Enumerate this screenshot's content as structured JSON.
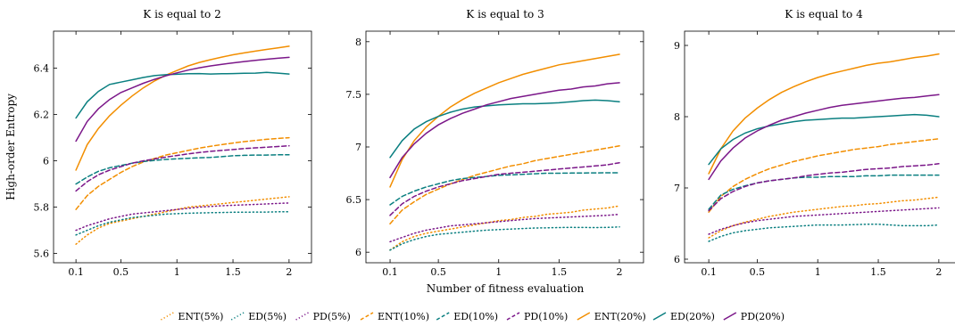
{
  "chart_data": {
    "type": "line",
    "xlabel": "Number of fitness evaluation",
    "ylabel": "High-order Entropy",
    "legend": {
      "placement": "bottom",
      "entries": [
        "ENT(5%)",
        "ED(5%)",
        "PD(5%)",
        "ENT(10%)",
        "ED(10%)",
        "PD(10%)",
        "ENT(20%)",
        "ED(20%)",
        "PD(20%)"
      ]
    },
    "styles": {
      "ENT": "#f28e00",
      "ED": "#0a7f80",
      "PD": "#7b1789",
      "5%": "dotted",
      "10%": "dashed",
      "20%": "solid"
    },
    "x": [
      0.1,
      0.2,
      0.3,
      0.4,
      0.5,
      0.6,
      0.7,
      0.8,
      0.9,
      1.0,
      1.1,
      1.2,
      1.3,
      1.4,
      1.5,
      1.6,
      1.7,
      1.8,
      1.9,
      2.0
    ],
    "panels": [
      {
        "title": "K is equal to 2",
        "xlim": [
          -0.1,
          2.2
        ],
        "ylim": [
          5.56,
          6.56
        ],
        "xticks": [
          0.1,
          0.5,
          1,
          1.5,
          2
        ],
        "xtick_labels": [
          "0.1",
          "0.5",
          "1",
          "1.5",
          "2"
        ],
        "yticks": [
          5.6,
          5.8,
          6.0,
          6.2,
          6.4
        ],
        "ytick_labels": [
          "5.6",
          "5.8",
          "6",
          "6.2",
          "6.4"
        ],
        "series": [
          {
            "name": "ENT(5%)",
            "values": [
              5.64,
              5.68,
              5.71,
              5.73,
              5.74,
              5.75,
              5.76,
              5.77,
              5.78,
              5.79,
              5.8,
              5.805,
              5.81,
              5.815,
              5.82,
              5.825,
              5.83,
              5.835,
              5.84,
              5.845
            ]
          },
          {
            "name": "ED(5%)",
            "values": [
              5.68,
              5.7,
              5.72,
              5.735,
              5.745,
              5.755,
              5.76,
              5.765,
              5.77,
              5.772,
              5.774,
              5.775,
              5.776,
              5.777,
              5.778,
              5.778,
              5.779,
              5.779,
              5.78,
              5.78
            ]
          },
          {
            "name": "PD(5%)",
            "values": [
              5.7,
              5.72,
              5.735,
              5.75,
              5.76,
              5.77,
              5.775,
              5.78,
              5.785,
              5.79,
              5.795,
              5.8,
              5.803,
              5.806,
              5.808,
              5.81,
              5.812,
              5.814,
              5.816,
              5.818
            ]
          },
          {
            "name": "ENT(10%)",
            "values": [
              5.79,
              5.85,
              5.89,
              5.92,
              5.95,
              5.975,
              5.995,
              6.01,
              6.025,
              6.035,
              6.045,
              6.055,
              6.063,
              6.07,
              6.077,
              6.083,
              6.088,
              6.093,
              6.097,
              6.1
            ]
          },
          {
            "name": "ED(10%)",
            "values": [
              5.9,
              5.93,
              5.955,
              5.97,
              5.98,
              5.99,
              5.997,
              6.002,
              6.006,
              6.009,
              6.011,
              6.013,
              6.015,
              6.018,
              6.022,
              6.024,
              6.025,
              6.025,
              6.026,
              6.026
            ]
          },
          {
            "name": "PD(10%)",
            "values": [
              5.87,
              5.91,
              5.94,
              5.96,
              5.975,
              5.99,
              6.0,
              6.008,
              6.016,
              6.023,
              6.03,
              6.036,
              6.041,
              6.045,
              6.049,
              6.053,
              6.056,
              6.059,
              6.062,
              6.065
            ]
          },
          {
            "name": "ENT(20%)",
            "values": [
              5.96,
              6.07,
              6.14,
              6.195,
              6.24,
              6.28,
              6.315,
              6.345,
              6.37,
              6.39,
              6.41,
              6.425,
              6.437,
              6.448,
              6.458,
              6.466,
              6.474,
              6.481,
              6.488,
              6.495
            ]
          },
          {
            "name": "ED(20%)",
            "values": [
              6.185,
              6.255,
              6.3,
              6.33,
              6.34,
              6.35,
              6.36,
              6.368,
              6.372,
              6.374,
              6.376,
              6.377,
              6.375,
              6.376,
              6.377,
              6.378,
              6.379,
              6.382,
              6.379,
              6.375
            ]
          },
          {
            "name": "PD(20%)",
            "values": [
              6.085,
              6.17,
              6.225,
              6.265,
              6.295,
              6.315,
              6.335,
              6.352,
              6.367,
              6.38,
              6.392,
              6.402,
              6.41,
              6.417,
              6.423,
              6.429,
              6.434,
              6.439,
              6.443,
              6.447
            ]
          }
        ]
      },
      {
        "title": "K is equal to 3",
        "xlim": [
          -0.1,
          2.2
        ],
        "ylim": [
          5.9,
          8.1
        ],
        "xticks": [
          0.1,
          0.5,
          1,
          1.5,
          2
        ],
        "xtick_labels": [
          "0.1",
          "0.5",
          "1",
          "1.5",
          "2"
        ],
        "yticks": [
          6.0,
          6.5,
          7.0,
          7.5,
          8.0
        ],
        "ytick_labels": [
          "6",
          "6.5",
          "7",
          "7.5",
          "8"
        ],
        "series": [
          {
            "name": "ENT(5%)",
            "values": [
              6.02,
              6.1,
              6.15,
              6.18,
              6.2,
              6.22,
              6.24,
              6.26,
              6.28,
              6.3,
              6.31,
              6.33,
              6.34,
              6.36,
              6.37,
              6.38,
              6.4,
              6.41,
              6.42,
              6.44
            ]
          },
          {
            "name": "ED(5%)",
            "values": [
              6.02,
              6.08,
              6.12,
              6.15,
              6.17,
              6.18,
              6.19,
              6.2,
              6.21,
              6.215,
              6.22,
              6.225,
              6.23,
              6.232,
              6.234,
              6.236,
              6.235,
              6.234,
              6.236,
              6.24
            ]
          },
          {
            "name": "PD(5%)",
            "values": [
              6.1,
              6.14,
              6.18,
              6.21,
              6.23,
              6.25,
              6.26,
              6.27,
              6.28,
              6.29,
              6.3,
              6.31,
              6.32,
              6.325,
              6.33,
              6.335,
              6.34,
              6.345,
              6.35,
              6.36
            ]
          },
          {
            "name": "ENT(10%)",
            "values": [
              6.27,
              6.4,
              6.48,
              6.55,
              6.6,
              6.65,
              6.69,
              6.73,
              6.76,
              6.79,
              6.82,
              6.84,
              6.87,
              6.89,
              6.91,
              6.93,
              6.95,
              6.97,
              6.99,
              7.01
            ]
          },
          {
            "name": "ED(10%)",
            "values": [
              6.45,
              6.53,
              6.58,
              6.62,
              6.65,
              6.68,
              6.7,
              6.71,
              6.72,
              6.73,
              6.735,
              6.74,
              6.745,
              6.75,
              6.75,
              6.752,
              6.753,
              6.754,
              6.755,
              6.755
            ]
          },
          {
            "name": "PD(10%)",
            "values": [
              6.35,
              6.46,
              6.53,
              6.58,
              6.62,
              6.65,
              6.68,
              6.7,
              6.72,
              6.74,
              6.75,
              6.76,
              6.77,
              6.78,
              6.79,
              6.8,
              6.81,
              6.82,
              6.83,
              6.85
            ]
          },
          {
            "name": "ENT(20%)",
            "values": [
              6.62,
              6.88,
              7.06,
              7.19,
              7.29,
              7.38,
              7.45,
              7.51,
              7.56,
              7.61,
              7.65,
              7.69,
              7.72,
              7.75,
              7.78,
              7.8,
              7.82,
              7.84,
              7.86,
              7.88
            ]
          },
          {
            "name": "ED(20%)",
            "values": [
              6.9,
              7.06,
              7.17,
              7.24,
              7.29,
              7.33,
              7.36,
              7.38,
              7.39,
              7.4,
              7.405,
              7.41,
              7.41,
              7.415,
              7.42,
              7.43,
              7.44,
              7.445,
              7.44,
              7.43
            ]
          },
          {
            "name": "PD(20%)",
            "values": [
              6.71,
              6.9,
              7.03,
              7.13,
              7.21,
              7.27,
              7.32,
              7.36,
              7.4,
              7.43,
              7.46,
              7.48,
              7.5,
              7.52,
              7.54,
              7.55,
              7.57,
              7.58,
              7.6,
              7.61
            ]
          }
        ]
      },
      {
        "title": "K is equal to 4",
        "xlim": [
          -0.1,
          2.2
        ],
        "ylim": [
          5.95,
          9.2
        ],
        "xticks": [
          0.1,
          0.5,
          1,
          1.5,
          2
        ],
        "xtick_labels": [
          "0.1",
          "0.5",
          "1",
          "1.5",
          "2"
        ],
        "yticks": [
          6,
          7,
          8,
          9
        ],
        "ytick_labels": [
          "6",
          "7",
          "8",
          "9"
        ],
        "series": [
          {
            "name": "ENT(5%)",
            "values": [
              6.3,
              6.4,
              6.47,
              6.52,
              6.56,
              6.6,
              6.63,
              6.66,
              6.68,
              6.7,
              6.72,
              6.74,
              6.75,
              6.77,
              6.78,
              6.8,
              6.82,
              6.83,
              6.85,
              6.87
            ]
          },
          {
            "name": "ED(5%)",
            "values": [
              6.25,
              6.32,
              6.37,
              6.4,
              6.42,
              6.44,
              6.45,
              6.46,
              6.47,
              6.48,
              6.48,
              6.48,
              6.485,
              6.49,
              6.49,
              6.48,
              6.47,
              6.47,
              6.47,
              6.48
            ]
          },
          {
            "name": "PD(5%)",
            "values": [
              6.35,
              6.42,
              6.47,
              6.51,
              6.54,
              6.56,
              6.58,
              6.6,
              6.61,
              6.62,
              6.63,
              6.64,
              6.65,
              6.66,
              6.67,
              6.68,
              6.69,
              6.7,
              6.71,
              6.72
            ]
          },
          {
            "name": "ENT(10%)",
            "values": [
              6.66,
              6.88,
              7.02,
              7.12,
              7.2,
              7.27,
              7.32,
              7.37,
              7.41,
              7.45,
              7.48,
              7.51,
              7.54,
              7.56,
              7.58,
              7.61,
              7.63,
              7.65,
              7.67,
              7.69
            ]
          },
          {
            "name": "ED(10%)",
            "values": [
              6.7,
              6.9,
              6.98,
              7.03,
              7.07,
              7.1,
              7.12,
              7.14,
              7.15,
              7.15,
              7.16,
              7.16,
              7.16,
              7.17,
              7.17,
              7.18,
              7.18,
              7.18,
              7.18,
              7.18
            ]
          },
          {
            "name": "PD(10%)",
            "values": [
              6.68,
              6.85,
              6.95,
              7.02,
              7.07,
              7.1,
              7.12,
              7.14,
              7.17,
              7.19,
              7.21,
              7.22,
              7.24,
              7.26,
              7.27,
              7.28,
              7.3,
              7.31,
              7.32,
              7.34
            ]
          },
          {
            "name": "ENT(20%)",
            "values": [
              7.2,
              7.55,
              7.8,
              7.98,
              8.12,
              8.24,
              8.34,
              8.42,
              8.49,
              8.55,
              8.6,
              8.64,
              8.68,
              8.72,
              8.75,
              8.77,
              8.8,
              8.83,
              8.85,
              8.88
            ]
          },
          {
            "name": "ED(20%)",
            "values": [
              7.33,
              7.55,
              7.68,
              7.77,
              7.83,
              7.87,
              7.9,
              7.93,
              7.95,
              7.96,
              7.97,
              7.98,
              7.98,
              7.99,
              8.0,
              8.01,
              8.02,
              8.03,
              8.02,
              8.0
            ]
          },
          {
            "name": "PD(20%)",
            "values": [
              7.12,
              7.38,
              7.56,
              7.7,
              7.8,
              7.88,
              7.95,
              8.0,
              8.05,
              8.09,
              8.13,
              8.16,
              8.18,
              8.2,
              8.22,
              8.24,
              8.26,
              8.27,
              8.29,
              8.31
            ]
          }
        ]
      }
    ]
  }
}
